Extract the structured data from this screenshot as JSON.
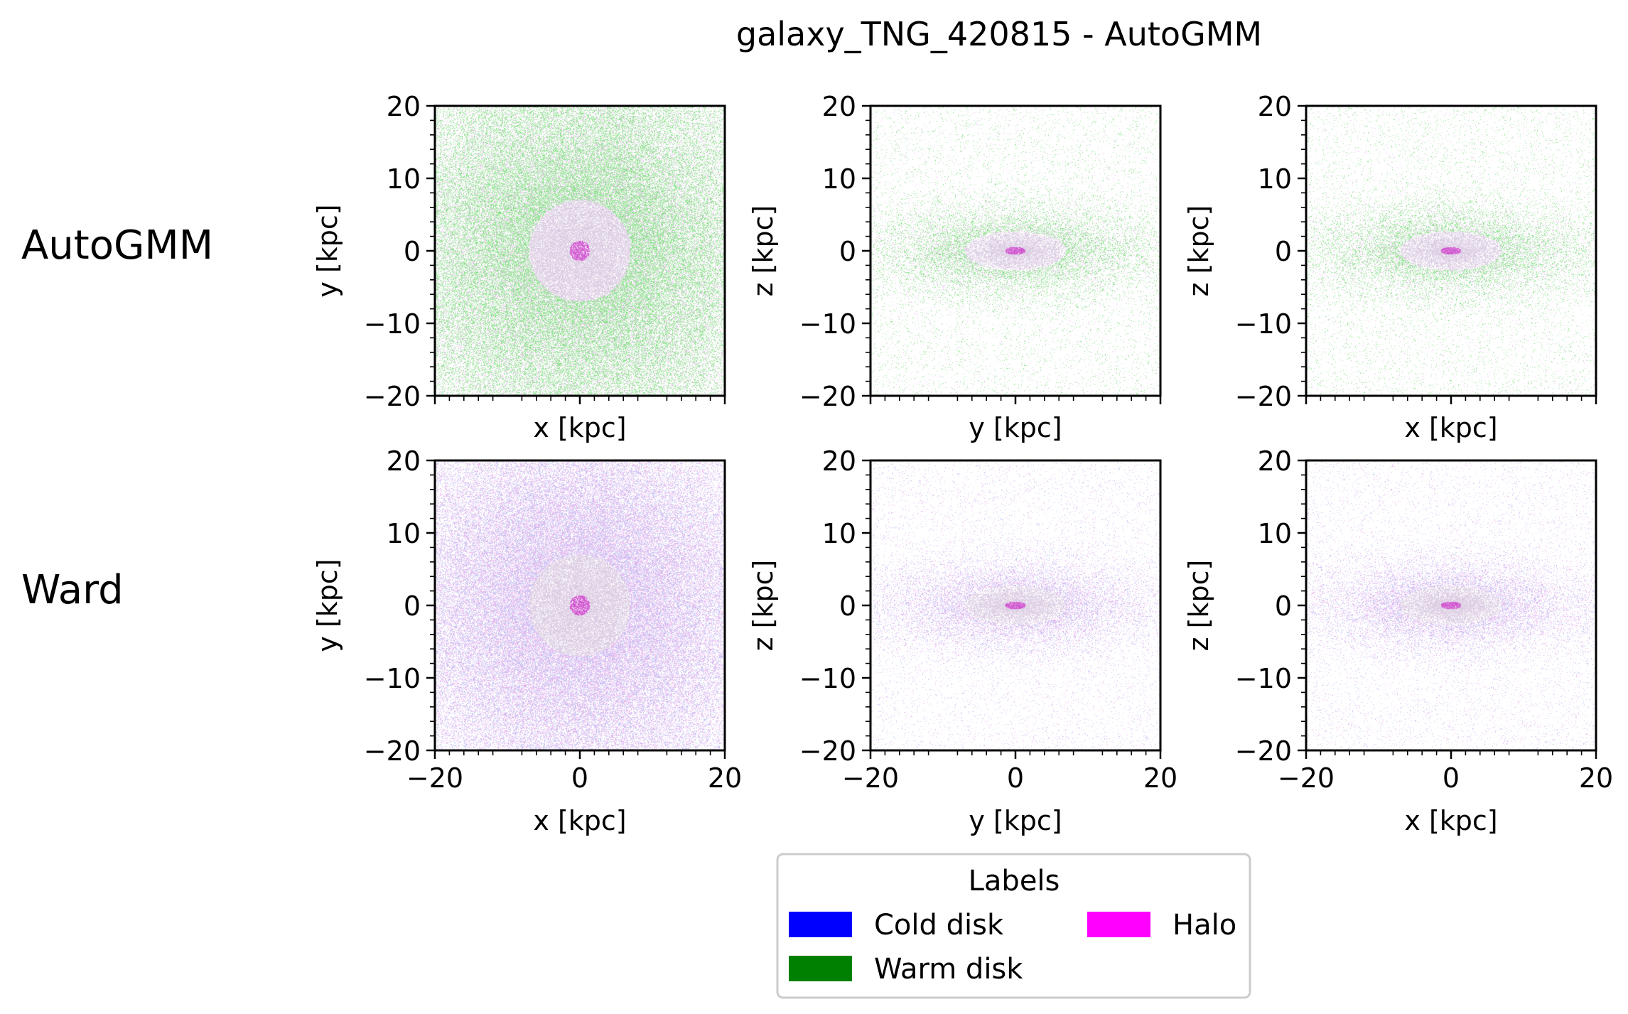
{
  "figure": {
    "title": "galaxy_TNG_420815 - AutoGMM",
    "row_labels": [
      "AutoGMM",
      "Ward"
    ]
  },
  "legend": {
    "title": "Labels",
    "items": [
      {
        "label": "Cold disk",
        "color": "#0000ff"
      },
      {
        "label": "Warm disk",
        "color": "#008000"
      },
      {
        "label": "Halo",
        "color": "#ff00ff"
      }
    ]
  },
  "chart_data": [
    {
      "type": "heatmap",
      "row": "AutoGMM",
      "xlabel": "x [kpc]",
      "ylabel": "y [kpc]",
      "xlim": [
        -20,
        20
      ],
      "ylim": [
        -20,
        20
      ],
      "projection": "face-on",
      "dominant": [
        "Warm disk",
        "Halo"
      ],
      "xtick_labels_shown": false
    },
    {
      "type": "heatmap",
      "row": "AutoGMM",
      "xlabel": "y [kpc]",
      "ylabel": "z [kpc]",
      "xlim": [
        -20,
        20
      ],
      "ylim": [
        -20,
        20
      ],
      "projection": "edge-on",
      "dominant": [
        "Warm disk",
        "Halo"
      ],
      "xtick_labels_shown": false
    },
    {
      "type": "heatmap",
      "row": "AutoGMM",
      "xlabel": "x [kpc]",
      "ylabel": "z [kpc]",
      "xlim": [
        -20,
        20
      ],
      "ylim": [
        -20,
        20
      ],
      "projection": "edge-on",
      "dominant": [
        "Warm disk",
        "Halo"
      ],
      "xtick_labels_shown": false
    },
    {
      "type": "heatmap",
      "row": "Ward",
      "xlabel": "x [kpc]",
      "ylabel": "y [kpc]",
      "xlim": [
        -20,
        20
      ],
      "ylim": [
        -20,
        20
      ],
      "projection": "face-on",
      "dominant": [
        "Cold disk",
        "Halo"
      ],
      "xtick_labels_shown": true
    },
    {
      "type": "heatmap",
      "row": "Ward",
      "xlabel": "y [kpc]",
      "ylabel": "z [kpc]",
      "xlim": [
        -20,
        20
      ],
      "ylim": [
        -20,
        20
      ],
      "projection": "edge-on",
      "dominant": [
        "Cold disk",
        "Halo"
      ],
      "xtick_labels_shown": true
    },
    {
      "type": "heatmap",
      "row": "Ward",
      "xlabel": "x [kpc]",
      "ylabel": "z [kpc]",
      "xlim": [
        -20,
        20
      ],
      "ylim": [
        -20,
        20
      ],
      "projection": "edge-on",
      "dominant": [
        "Cold disk",
        "Halo"
      ],
      "xtick_labels_shown": true
    }
  ]
}
